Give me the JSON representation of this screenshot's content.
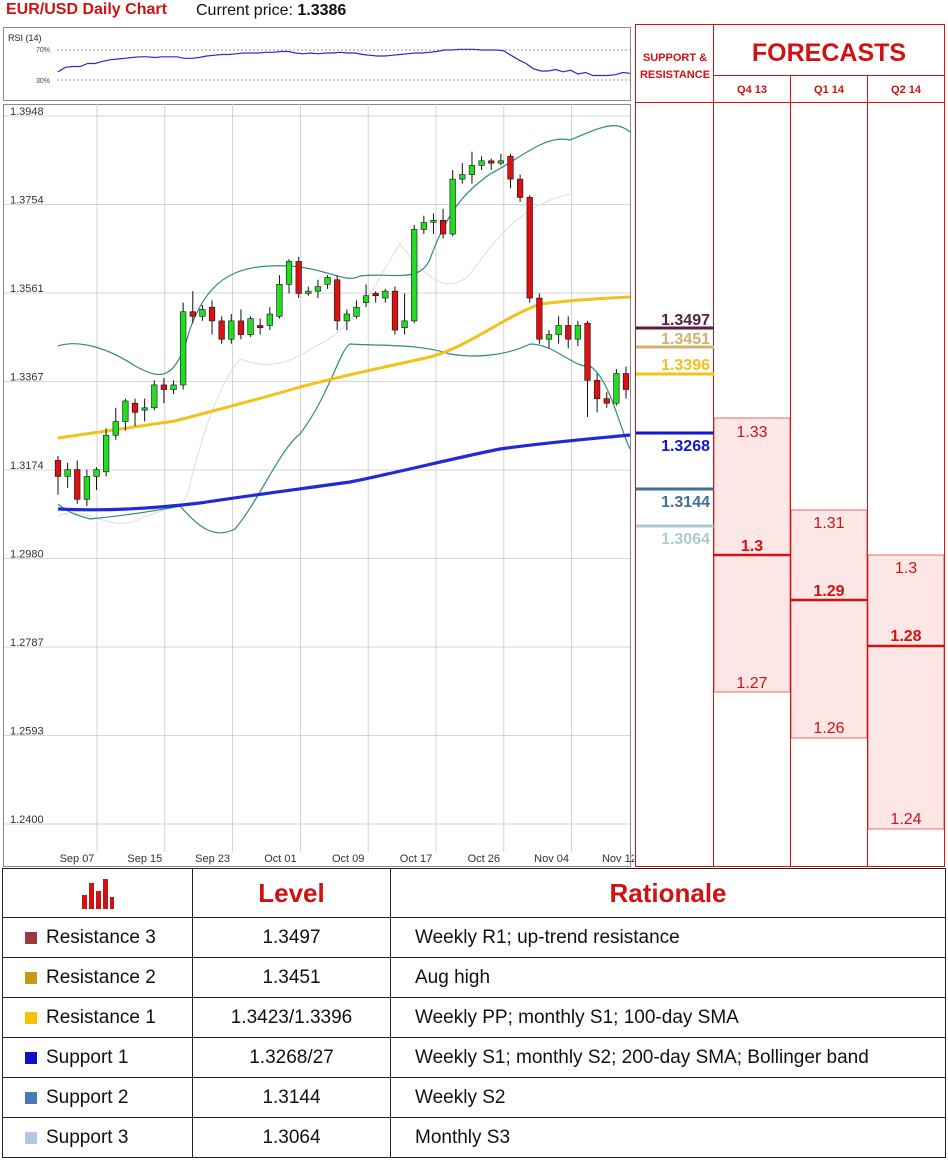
{
  "header": {
    "title": "EUR/USD Daily Chart",
    "price_label": "Current price:",
    "price_value": "1.3386"
  },
  "rsi": {
    "label": "RSI (14)",
    "upper_label": "70%",
    "lower_label": "30%",
    "values": [
      41,
      47,
      48,
      48,
      52,
      52,
      55,
      57,
      58,
      59,
      60,
      61,
      61,
      60,
      61,
      61,
      61,
      59,
      59,
      60,
      62,
      63,
      64,
      64,
      65,
      66,
      66,
      66,
      67,
      67,
      68,
      68,
      66,
      65,
      66,
      65,
      66,
      66,
      67,
      66,
      66,
      64,
      63,
      62,
      62,
      63,
      64,
      65,
      66,
      66,
      67,
      68,
      70,
      70,
      71,
      71,
      71,
      70,
      70,
      70,
      69,
      63,
      57,
      52,
      45,
      42,
      42,
      44,
      41,
      43,
      38,
      40,
      36,
      36,
      36,
      37,
      40,
      39
    ]
  },
  "chart_data": {
    "type": "candlestick",
    "title": "EUR/USD Daily Chart",
    "y_ticks": [
      "1.3948",
      "1.3754",
      "1.3561",
      "1.3367",
      "1.3174",
      "1.2980",
      "1.2787",
      "1.2593",
      "1.2400"
    ],
    "x_ticks": [
      "Sep 07",
      "Sep 15",
      "Sep 23",
      "Oct 01",
      "Oct 09",
      "Oct 17",
      "Oct 26",
      "Nov 04",
      "Nov 12"
    ],
    "ylim": [
      1.24,
      1.3948
    ],
    "candles": [
      [
        1.3195,
        1.316,
        1.3205,
        1.312
      ],
      [
        1.316,
        1.3175,
        1.319,
        1.3135
      ],
      [
        1.3175,
        1.311,
        1.3195,
        1.31
      ],
      [
        1.311,
        1.316,
        1.3175,
        1.3095
      ],
      [
        1.316,
        1.3175,
        1.318,
        1.313
      ],
      [
        1.317,
        1.325,
        1.3265,
        1.316
      ],
      [
        1.325,
        1.328,
        1.331,
        1.324
      ],
      [
        1.328,
        1.3325,
        1.333,
        1.326
      ],
      [
        1.332,
        1.33,
        1.333,
        1.327
      ],
      [
        1.3305,
        1.331,
        1.333,
        1.328
      ],
      [
        1.331,
        1.336,
        1.337,
        1.3305
      ],
      [
        1.336,
        1.335,
        1.3375,
        1.332
      ],
      [
        1.335,
        1.336,
        1.337,
        1.334
      ],
      [
        1.336,
        1.352,
        1.354,
        1.335
      ],
      [
        1.352,
        1.351,
        1.3565,
        1.3495
      ],
      [
        1.351,
        1.3525,
        1.3535,
        1.35
      ],
      [
        1.353,
        1.35,
        1.3545,
        1.347
      ],
      [
        1.35,
        1.346,
        1.351,
        1.345
      ],
      [
        1.346,
        1.35,
        1.3515,
        1.345
      ],
      [
        1.35,
        1.347,
        1.3525,
        1.346
      ],
      [
        1.347,
        1.3505,
        1.351,
        1.3465
      ],
      [
        1.349,
        1.3485,
        1.3505,
        1.347
      ],
      [
        1.349,
        1.3515,
        1.353,
        1.348
      ],
      [
        1.351,
        1.358,
        1.36,
        1.3505
      ],
      [
        1.358,
        1.363,
        1.3635,
        1.356
      ],
      [
        1.363,
        1.356,
        1.364,
        1.355
      ],
      [
        1.356,
        1.3565,
        1.3575,
        1.3555
      ],
      [
        1.3565,
        1.3575,
        1.359,
        1.355
      ],
      [
        1.358,
        1.3595,
        1.36,
        1.357
      ],
      [
        1.359,
        1.35,
        1.36,
        1.348
      ],
      [
        1.35,
        1.3515,
        1.3525,
        1.348
      ],
      [
        1.351,
        1.353,
        1.3545,
        1.3505
      ],
      [
        1.354,
        1.3555,
        1.358,
        1.353
      ],
      [
        1.356,
        1.3555,
        1.3565,
        1.354
      ],
      [
        1.355,
        1.3565,
        1.357,
        1.354
      ],
      [
        1.3565,
        1.348,
        1.3575,
        1.347
      ],
      [
        1.3485,
        1.35,
        1.356,
        1.347
      ],
      [
        1.35,
        1.37,
        1.371,
        1.3495
      ],
      [
        1.37,
        1.3715,
        1.373,
        1.369
      ],
      [
        1.372,
        1.372,
        1.3735,
        1.369
      ],
      [
        1.372,
        1.369,
        1.3745,
        1.368
      ],
      [
        1.369,
        1.381,
        1.383,
        1.3685
      ],
      [
        1.381,
        1.382,
        1.3845,
        1.38
      ],
      [
        1.382,
        1.384,
        1.387,
        1.38
      ],
      [
        1.384,
        1.385,
        1.386,
        1.383
      ],
      [
        1.385,
        1.3845,
        1.3855,
        1.383
      ],
      [
        1.3845,
        1.385,
        1.3865,
        1.384
      ],
      [
        1.386,
        1.381,
        1.3865,
        1.379
      ],
      [
        1.381,
        1.377,
        1.382,
        1.376
      ],
      [
        1.377,
        1.355,
        1.3775,
        1.354
      ],
      [
        1.355,
        1.346,
        1.356,
        1.345
      ],
      [
        1.346,
        1.347,
        1.348,
        1.344
      ],
      [
        1.347,
        1.349,
        1.351,
        1.345
      ],
      [
        1.349,
        1.346,
        1.351,
        1.344
      ],
      [
        1.346,
        1.349,
        1.35,
        1.3445
      ],
      [
        1.3495,
        1.337,
        1.35,
        1.329
      ],
      [
        1.337,
        1.333,
        1.3385,
        1.33
      ],
      [
        1.333,
        1.332,
        1.3345,
        1.331
      ],
      [
        1.332,
        1.3385,
        1.3395,
        1.3315
      ],
      [
        1.3385,
        1.335,
        1.34,
        1.333
      ]
    ]
  },
  "levels": [
    {
      "value": "1.3497",
      "color": "#5a1f3e"
    },
    {
      "value": "1.3451",
      "color": "#d4b06a"
    },
    {
      "value": "1.3396",
      "color": "#f2c21a"
    },
    {
      "value": "1.3268",
      "color": "#1515c8"
    },
    {
      "value": "1.3144",
      "color": "#3f6f9a"
    },
    {
      "value": "1.3064",
      "color": "#aacdd2"
    }
  ],
  "forecasts": {
    "title": "FORECASTS",
    "sr_label_1": "SUPPORT &",
    "sr_label_2": "RESISTANCE",
    "periods": [
      {
        "label": "Q4 13",
        "high": "1.33",
        "median": "1.3",
        "low": "1.27"
      },
      {
        "label": "Q1 14",
        "high": "1.31",
        "median": "1.29",
        "low": "1.26"
      },
      {
        "label": "Q2 14",
        "high": "1.3",
        "median": "1.28",
        "low": "1.24"
      }
    ]
  },
  "table": {
    "headers": {
      "level": "Level",
      "rationale": "Rationale"
    },
    "rows": [
      {
        "name": "Resistance 3",
        "level": "1.3497",
        "rationale": "Weekly R1; up-trend resistance",
        "color": "#9a3a3a"
      },
      {
        "name": "Resistance 2",
        "level": "1.3451",
        "rationale": "Aug high",
        "color": "#c89a14"
      },
      {
        "name": "Resistance 1",
        "level": "1.3423/1.3396",
        "rationale": "Weekly PP; monthly S1; 100-day SMA",
        "color": "#f5c400"
      },
      {
        "name": "Support 1",
        "level": "1.3268/27",
        "rationale": "Weekly S1; monthly S2; 200-day SMA; Bollinger band",
        "color": "#1010c8"
      },
      {
        "name": "Support 2",
        "level": "1.3144",
        "rationale": "Weekly S2",
        "color": "#4a7ab4"
      },
      {
        "name": "Support 3",
        "level": "1.3064",
        "rationale": "Monthly S3",
        "color": "#b4c8e4"
      }
    ]
  }
}
